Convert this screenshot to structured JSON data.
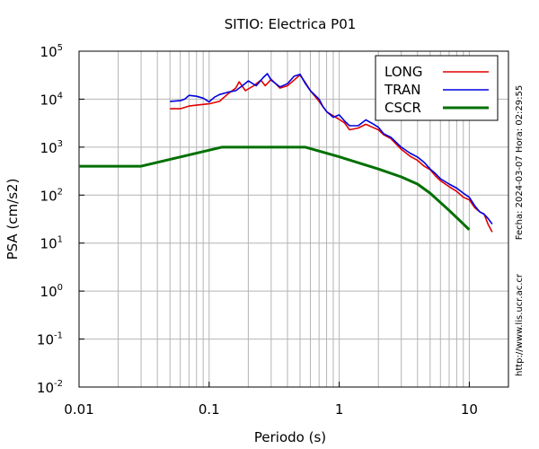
{
  "chart_data": {
    "type": "line",
    "title": "SITIO: Electrica P01",
    "xlabel": "Periodo (s)",
    "ylabel": "PSA (cm/s2)",
    "x_scale": "log",
    "y_scale": "log",
    "xlim": [
      0.01,
      20
    ],
    "ylim": [
      0.01,
      100000
    ],
    "grid": true,
    "legend_position": "top-right",
    "x_ticks": [
      {
        "value": 0.01,
        "label": "0.01"
      },
      {
        "value": 0.1,
        "label": "0.1"
      },
      {
        "value": 1,
        "label": "1"
      },
      {
        "value": 10,
        "label": "10"
      }
    ],
    "y_ticks": [
      {
        "value": 0.01,
        "base": "10",
        "exp": "-2"
      },
      {
        "value": 0.1,
        "base": "10",
        "exp": "-1"
      },
      {
        "value": 1,
        "base": "10",
        "exp": "0"
      },
      {
        "value": 10,
        "base": "10",
        "exp": "1"
      },
      {
        "value": 100,
        "base": "10",
        "exp": "2"
      },
      {
        "value": 1000,
        "base": "10",
        "exp": "3"
      },
      {
        "value": 10000,
        "base": "10",
        "exp": "4"
      },
      {
        "value": 100000,
        "base": "10",
        "exp": "5"
      }
    ],
    "series": [
      {
        "name": "LONG",
        "color": "#e00000",
        "points": [
          [
            0.05,
            6300
          ],
          [
            0.06,
            6300
          ],
          [
            0.07,
            7200
          ],
          [
            0.08,
            7500
          ],
          [
            0.1,
            8000
          ],
          [
            0.12,
            9000
          ],
          [
            0.14,
            13000
          ],
          [
            0.16,
            17000
          ],
          [
            0.17,
            23000
          ],
          [
            0.19,
            15000
          ],
          [
            0.22,
            19000
          ],
          [
            0.25,
            25000
          ],
          [
            0.27,
            19000
          ],
          [
            0.3,
            26000
          ],
          [
            0.35,
            17000
          ],
          [
            0.4,
            19000
          ],
          [
            0.45,
            25000
          ],
          [
            0.5,
            32000
          ],
          [
            0.55,
            22000
          ],
          [
            0.6,
            15000
          ],
          [
            0.7,
            9000
          ],
          [
            0.8,
            5500
          ],
          [
            0.9,
            4500
          ],
          [
            1.0,
            3800
          ],
          [
            1.1,
            3200
          ],
          [
            1.2,
            2300
          ],
          [
            1.4,
            2500
          ],
          [
            1.6,
            3000
          ],
          [
            1.8,
            2600
          ],
          [
            2.0,
            2300
          ],
          [
            2.2,
            1800
          ],
          [
            2.5,
            1500
          ],
          [
            3.0,
            900
          ],
          [
            3.5,
            650
          ],
          [
            4.0,
            530
          ],
          [
            4.5,
            400
          ],
          [
            5.0,
            340
          ],
          [
            5.5,
            250
          ],
          [
            6.0,
            200
          ],
          [
            7.0,
            150
          ],
          [
            8.0,
            120
          ],
          [
            9.0,
            90
          ],
          [
            10.0,
            80
          ],
          [
            11.0,
            55
          ],
          [
            12.0,
            45
          ],
          [
            13.0,
            40
          ],
          [
            14.0,
            24
          ],
          [
            15.0,
            17
          ]
        ]
      },
      {
        "name": "TRAN",
        "color": "#0000e0",
        "points": [
          [
            0.05,
            9000
          ],
          [
            0.06,
            9300
          ],
          [
            0.065,
            10000
          ],
          [
            0.07,
            12000
          ],
          [
            0.08,
            11500
          ],
          [
            0.09,
            10500
          ],
          [
            0.1,
            8800
          ],
          [
            0.11,
            11000
          ],
          [
            0.12,
            12500
          ],
          [
            0.14,
            14000
          ],
          [
            0.16,
            15000
          ],
          [
            0.18,
            19000
          ],
          [
            0.2,
            24000
          ],
          [
            0.23,
            19000
          ],
          [
            0.26,
            28000
          ],
          [
            0.28,
            34000
          ],
          [
            0.3,
            25000
          ],
          [
            0.35,
            18000
          ],
          [
            0.4,
            21000
          ],
          [
            0.45,
            30000
          ],
          [
            0.5,
            33000
          ],
          [
            0.55,
            21000
          ],
          [
            0.6,
            15000
          ],
          [
            0.7,
            10000
          ],
          [
            0.75,
            7000
          ],
          [
            0.8,
            5500
          ],
          [
            0.9,
            4200
          ],
          [
            1.0,
            4700
          ],
          [
            1.1,
            3500
          ],
          [
            1.2,
            2800
          ],
          [
            1.4,
            2800
          ],
          [
            1.6,
            3700
          ],
          [
            1.8,
            3100
          ],
          [
            2.0,
            2600
          ],
          [
            2.2,
            1900
          ],
          [
            2.5,
            1600
          ],
          [
            3.0,
            1000
          ],
          [
            3.5,
            750
          ],
          [
            4.0,
            620
          ],
          [
            4.5,
            480
          ],
          [
            5.0,
            350
          ],
          [
            5.5,
            280
          ],
          [
            6.0,
            220
          ],
          [
            7.0,
            170
          ],
          [
            8.0,
            140
          ],
          [
            9.0,
            110
          ],
          [
            10.0,
            90
          ],
          [
            11.0,
            60
          ],
          [
            12.0,
            45
          ],
          [
            13.0,
            40
          ],
          [
            14.0,
            32
          ],
          [
            15.0,
            25
          ]
        ]
      },
      {
        "name": "CSCR",
        "color": "#007000",
        "points": [
          [
            0.01,
            400
          ],
          [
            0.03,
            400
          ],
          [
            0.125,
            1000
          ],
          [
            0.55,
            1000
          ],
          [
            1.0,
            630
          ],
          [
            2.0,
            350
          ],
          [
            3.0,
            240
          ],
          [
            4.0,
            170
          ],
          [
            5.0,
            110
          ],
          [
            7.0,
            48
          ],
          [
            10.0,
            19
          ]
        ]
      }
    ]
  },
  "side_labels": {
    "url": "http://www.lis.ucr.ac.cr",
    "timestamp": "Fecha: 2024-03-07 Hora: 02:29:55"
  }
}
